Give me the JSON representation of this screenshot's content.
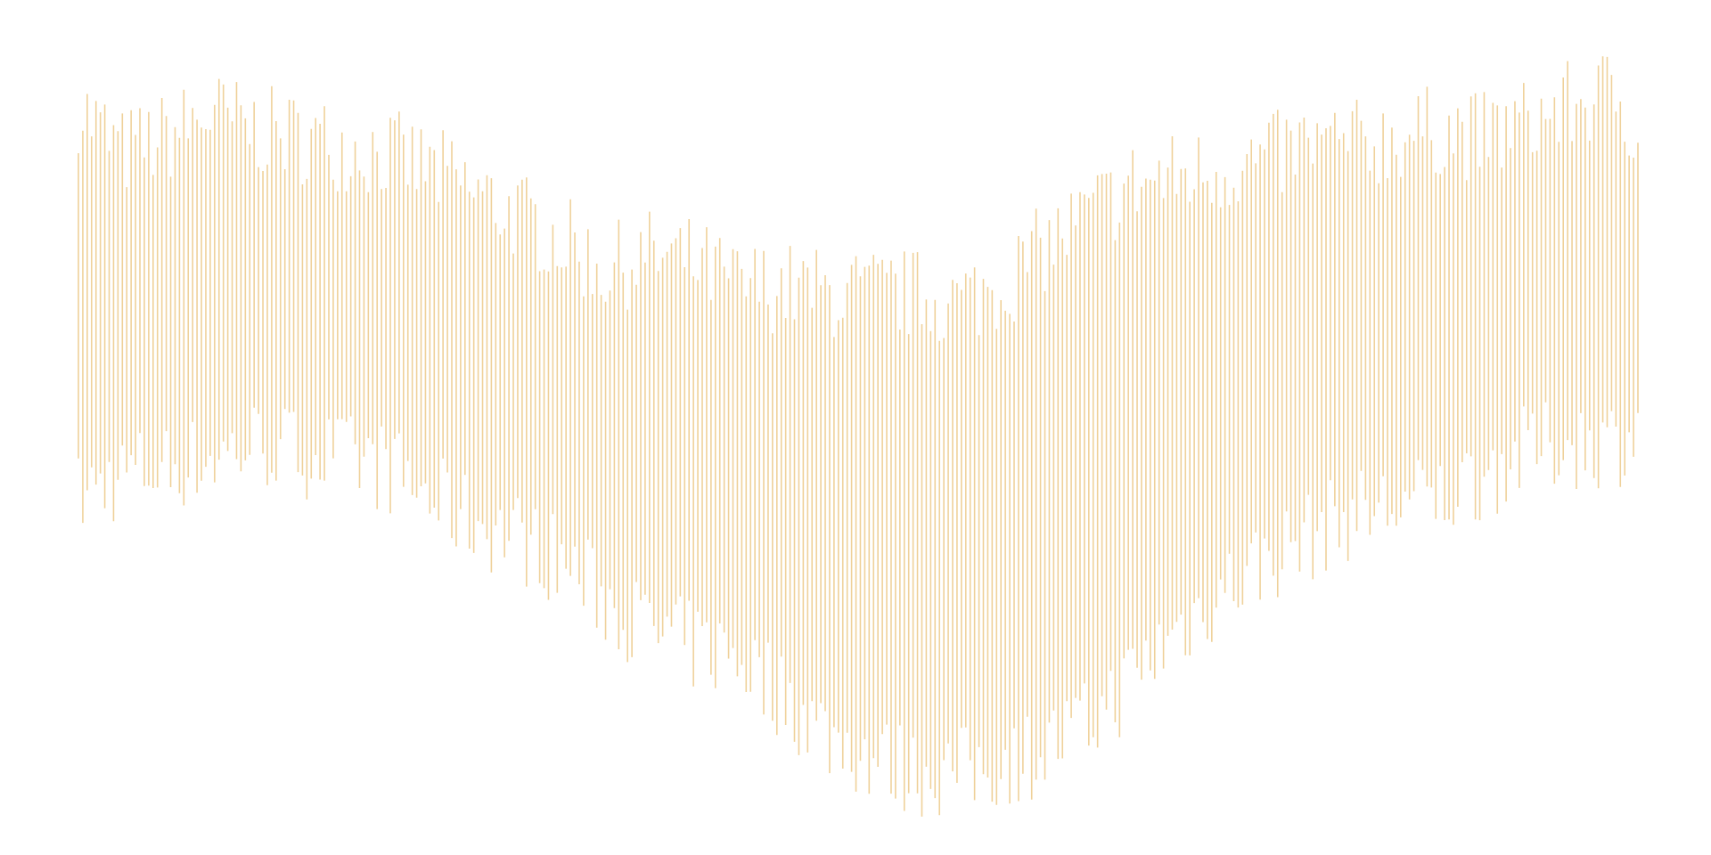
{
  "chart_data": {
    "type": "range-bar",
    "title": "",
    "xlabel": "",
    "ylabel": "",
    "axes_visible": false,
    "grid": false,
    "legend": "none",
    "bar_color": "#efd19a",
    "ylim": [
      0,
      100
    ],
    "n_bars": 356,
    "envelope": [
      {
        "i": 0,
        "high": 91,
        "low": 41
      },
      {
        "i": 10,
        "high": 85,
        "low": 44
      },
      {
        "i": 20,
        "high": 87,
        "low": 45
      },
      {
        "i": 30,
        "high": 90,
        "low": 46
      },
      {
        "i": 40,
        "high": 88,
        "low": 48
      },
      {
        "i": 50,
        "high": 87,
        "low": 47
      },
      {
        "i": 60,
        "high": 86,
        "low": 46
      },
      {
        "i": 70,
        "high": 85,
        "low": 45
      },
      {
        "i": 80,
        "high": 83,
        "low": 41
      },
      {
        "i": 90,
        "high": 80,
        "low": 38
      },
      {
        "i": 100,
        "high": 77,
        "low": 36
      },
      {
        "i": 110,
        "high": 74,
        "low": 33
      },
      {
        "i": 120,
        "high": 70,
        "low": 28
      },
      {
        "i": 130,
        "high": 72,
        "low": 24
      },
      {
        "i": 140,
        "high": 71,
        "low": 22
      },
      {
        "i": 150,
        "high": 68,
        "low": 21
      },
      {
        "i": 160,
        "high": 68,
        "low": 16
      },
      {
        "i": 170,
        "high": 67,
        "low": 11
      },
      {
        "i": 180,
        "high": 67,
        "low": 8
      },
      {
        "i": 190,
        "high": 67,
        "low": 6
      },
      {
        "i": 200,
        "high": 66,
        "low": 6
      },
      {
        "i": 210,
        "high": 68,
        "low": 7
      },
      {
        "i": 220,
        "high": 73,
        "low": 9
      },
      {
        "i": 230,
        "high": 77,
        "low": 12
      },
      {
        "i": 240,
        "high": 81,
        "low": 18
      },
      {
        "i": 250,
        "high": 82,
        "low": 24
      },
      {
        "i": 260,
        "high": 83,
        "low": 29
      },
      {
        "i": 270,
        "high": 84,
        "low": 33
      },
      {
        "i": 280,
        "high": 86,
        "low": 36
      },
      {
        "i": 290,
        "high": 86,
        "low": 39
      },
      {
        "i": 300,
        "high": 87,
        "low": 40
      },
      {
        "i": 310,
        "high": 88,
        "low": 41
      },
      {
        "i": 320,
        "high": 87,
        "low": 44
      },
      {
        "i": 330,
        "high": 89,
        "low": 47
      },
      {
        "i": 340,
        "high": 91,
        "low": 48
      },
      {
        "i": 350,
        "high": 93,
        "low": 48
      },
      {
        "i": 355,
        "high": 88,
        "low": 50
      }
    ],
    "variation_amplitude": 6,
    "random_seed": 7
  }
}
